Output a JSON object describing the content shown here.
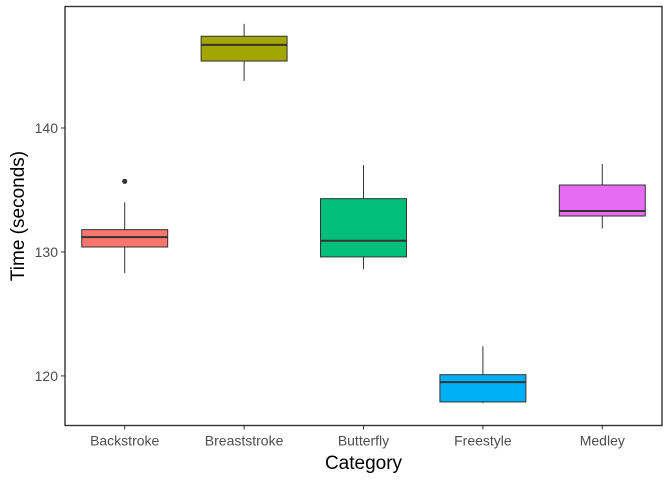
{
  "chart_data": {
    "type": "boxplot",
    "title": "",
    "xlabel": "Category",
    "ylabel": "Time (seconds)",
    "categories": [
      "Backstroke",
      "Breaststroke",
      "Butterfly",
      "Freestyle",
      "Medley"
    ],
    "boxes": [
      {
        "category": "Backstroke",
        "min": 128.3,
        "q1": 130.4,
        "median": 131.2,
        "q3": 131.8,
        "max": 134.0,
        "outliers": [
          135.7
        ],
        "color": "#F8766D"
      },
      {
        "category": "Breaststroke",
        "min": 143.8,
        "q1": 145.4,
        "median": 146.7,
        "q3": 147.4,
        "max": 148.4,
        "outliers": [],
        "color": "#A3A500"
      },
      {
        "category": "Butterfly",
        "min": 128.6,
        "q1": 129.6,
        "median": 130.9,
        "q3": 134.3,
        "max": 137.0,
        "outliers": [],
        "color": "#00BF7D"
      },
      {
        "category": "Freestyle",
        "min": 117.8,
        "q1": 117.9,
        "median": 119.5,
        "q3": 120.1,
        "max": 122.4,
        "outliers": [],
        "color": "#00B0F6"
      },
      {
        "category": "Medley",
        "min": 131.9,
        "q1": 132.9,
        "median": 133.3,
        "q3": 135.4,
        "max": 137.1,
        "outliers": [],
        "color": "#E76BF3"
      }
    ],
    "yticks": [
      120,
      130,
      140
    ],
    "ylim": [
      116.0,
      149.8
    ],
    "grid": false,
    "legend": "none"
  }
}
